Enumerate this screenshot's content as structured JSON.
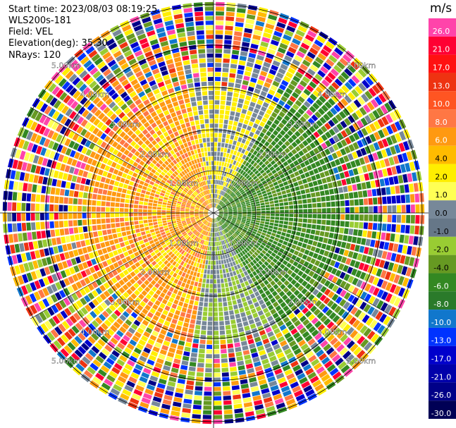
{
  "info": {
    "start_time": "Start time: 2023/08/03 08:19:25",
    "instrument": "WLS200s-181",
    "field": "Field: VEL",
    "elevation": "Elevation(deg): 35.30",
    "nrays": "NRays: 120"
  },
  "colorbar": {
    "unit": "m/s",
    "labels": [
      "26.0",
      "21.0",
      "17.0",
      "13.0",
      "10.0",
      "8.0",
      "6.0",
      "4.0",
      "2.0",
      "1.0",
      "0.0",
      "-1.0",
      "-2.0",
      "-4.0",
      "-6.0",
      "-8.0",
      "-10.0",
      "-13.0",
      "-17.0",
      "-21.0",
      "-26.0",
      "-30.0"
    ],
    "colors": [
      "#ff44aa",
      "#ff0033",
      "#ff1111",
      "#ee3311",
      "#ff5522",
      "#ff7744",
      "#ff9911",
      "#ffbb00",
      "#ffee00",
      "#ffff55",
      "#778899",
      "#667788",
      "#99cc33",
      "#669922",
      "#338822",
      "#2a7a2a",
      "#1177cc",
      "#0033ff",
      "#0000cc",
      "#0000aa",
      "#000088",
      "#000055"
    ]
  },
  "range_labels": [
    "1.00km",
    "2.00km",
    "3.00km",
    "4.00km",
    "5.00km"
  ]
}
